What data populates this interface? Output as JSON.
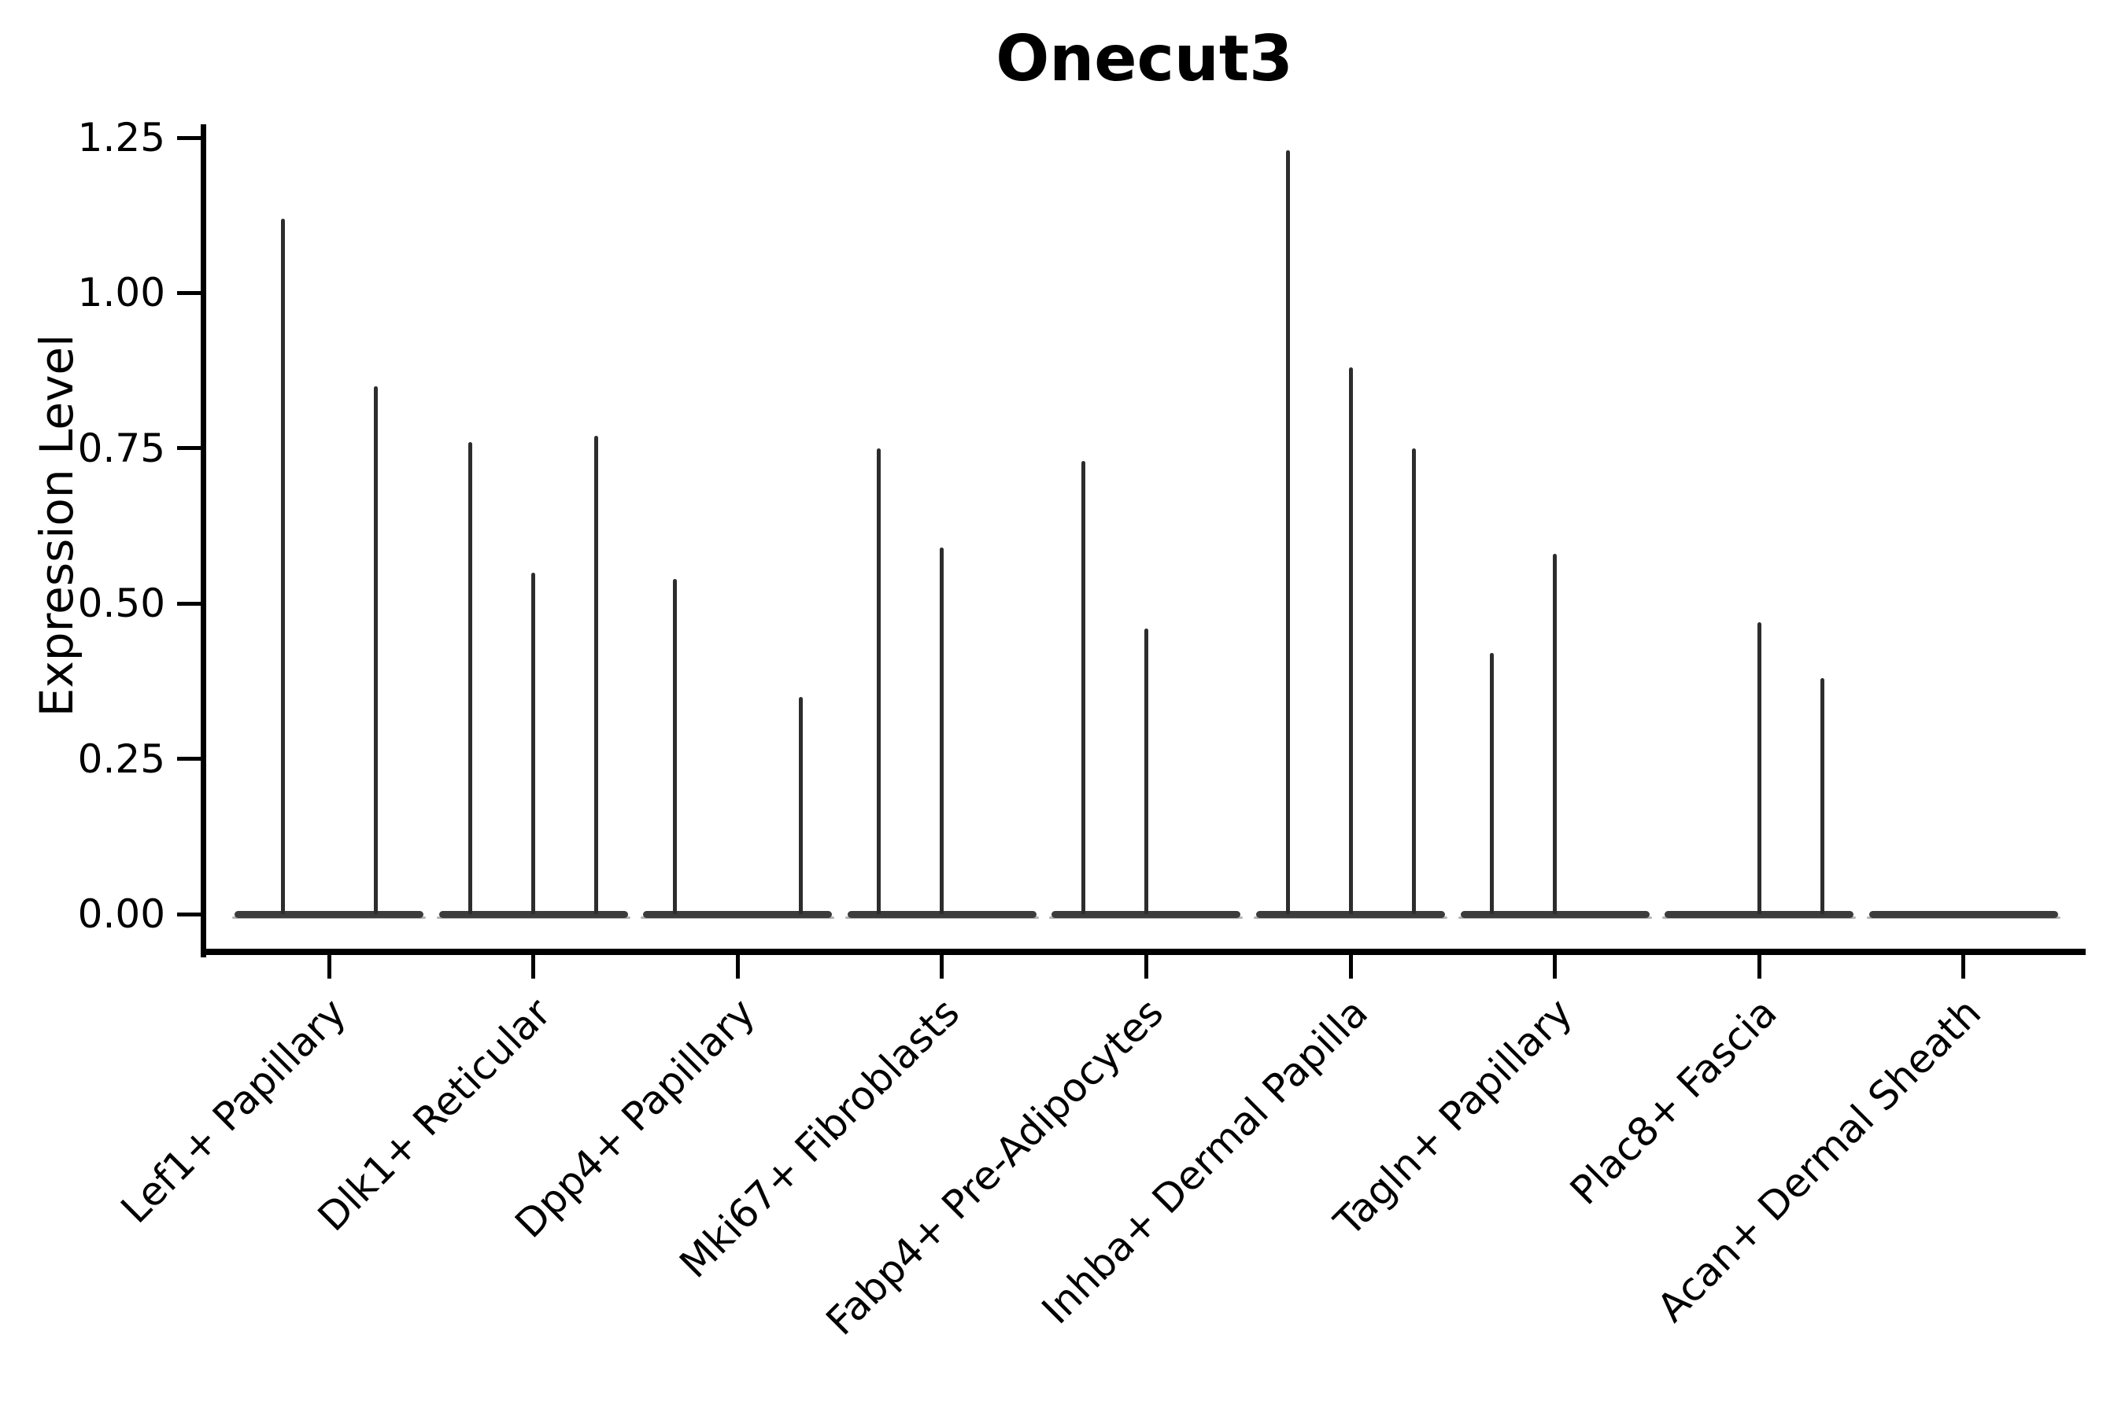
{
  "chart_data": {
    "type": "violin",
    "title": "Onecut3",
    "ylabel": "Expression Level",
    "xlabel": "",
    "ylim": [
      0,
      1.25
    ],
    "grid": false,
    "legend_position": "none",
    "y_tick_values": [
      0,
      0.25,
      0.5,
      0.75,
      1.0,
      1.25
    ],
    "y_tick_labels": [
      "0.00",
      "0.25",
      "0.50",
      "0.75",
      "1.00",
      "1.25"
    ],
    "categories": [
      "Lef1+ Papillary",
      "Dlk1+ Reticular",
      "Dpp4+ Papillary",
      "Mki67+ Fibroblasts",
      "Fabp4+ Pre-Adipocytes",
      "Inhba+ Dermal Papilla",
      "Tagln+ Papillary",
      "Plac8+ Fascia",
      "Acan+ Dermal Sheath"
    ],
    "series": [
      {
        "category": "Lef1+ Papillary",
        "violins": [
          {
            "dx": -59,
            "max": 1.12
          },
          {
            "dx": 59,
            "max": 0.85
          }
        ]
      },
      {
        "category": "Dlk1+ Reticular",
        "violins": [
          {
            "dx": -80,
            "max": 0.76
          },
          {
            "dx": 0,
            "max": 0.55
          },
          {
            "dx": 80,
            "max": 0.77
          }
        ]
      },
      {
        "category": "Dpp4+ Papillary",
        "violins": [
          {
            "dx": -80,
            "max": 0.54
          },
          {
            "dx": 80,
            "max": 0.35
          }
        ]
      },
      {
        "category": "Mki67+ Fibroblasts",
        "violins": [
          {
            "dx": -80,
            "max": 0.75
          },
          {
            "dx": 0,
            "max": 0.59
          }
        ]
      },
      {
        "category": "Fabp4+ Pre-Adipocytes",
        "violins": [
          {
            "dx": -80,
            "max": 0.73
          },
          {
            "dx": 0,
            "max": 0.46
          }
        ]
      },
      {
        "category": "Inhba+ Dermal Papilla",
        "violins": [
          {
            "dx": -80,
            "max": 1.23
          },
          {
            "dx": 0,
            "max": 0.88
          },
          {
            "dx": 80,
            "max": 0.75
          }
        ]
      },
      {
        "category": "Tagln+ Papillary",
        "violins": [
          {
            "dx": -80,
            "max": 0.42
          },
          {
            "dx": 0,
            "max": 0.58
          }
        ]
      },
      {
        "category": "Plac8+ Fascia",
        "violins": [
          {
            "dx": 0,
            "max": 0.47
          },
          {
            "dx": 80,
            "max": 0.38
          }
        ]
      },
      {
        "category": "Acan+ Dermal Sheath",
        "violins": []
      }
    ],
    "colors": {
      "spike_line": "#2d2d2d",
      "baseline_bar": "#3c3c3c",
      "baseline_shadow": "#b4b4b4",
      "axis": "#000000",
      "text": "#000000",
      "background": "#ffffff"
    }
  }
}
